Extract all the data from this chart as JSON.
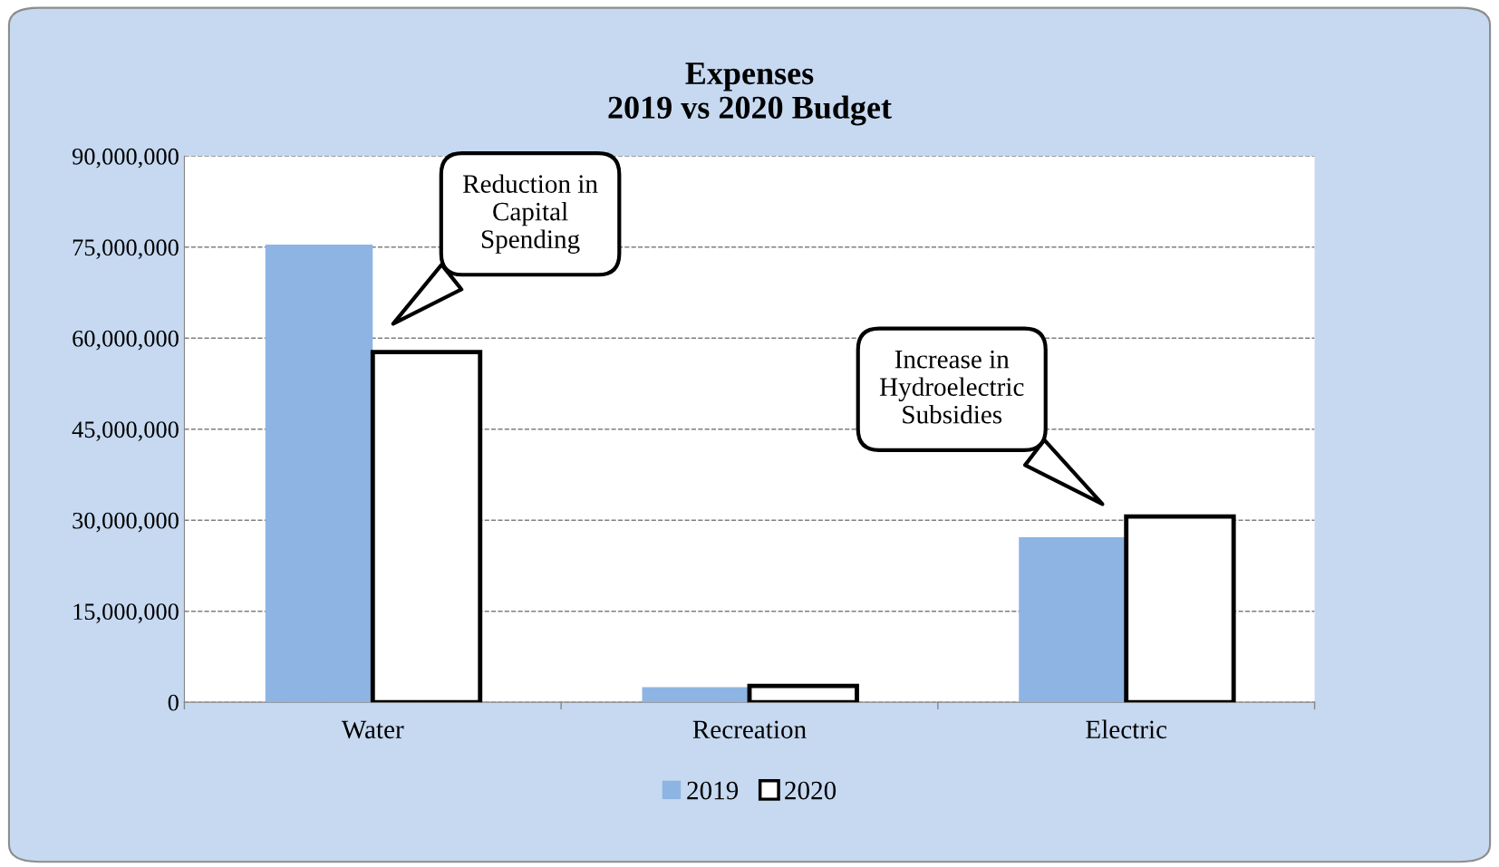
{
  "chart_data": {
    "type": "bar",
    "title": "Expenses\n2019 vs 2020 Budget",
    "categories": [
      "Water",
      "Recreation",
      "Electric"
    ],
    "series": [
      {
        "name": "2019",
        "color": "#8eb4e3",
        "values": [
          75400000,
          2500000,
          27200000
        ]
      },
      {
        "name": "2020",
        "color": "#ffffff",
        "values": [
          57700000,
          2700000,
          30600000
        ]
      }
    ],
    "ylim": [
      0,
      90000000
    ],
    "yticks": [
      {
        "value": 0,
        "label": "0"
      },
      {
        "value": 15000000,
        "label": "15,000,000"
      },
      {
        "value": 30000000,
        "label": "30,000,000"
      },
      {
        "value": 45000000,
        "label": "45,000,000"
      },
      {
        "value": 60000000,
        "label": "60,000,000"
      },
      {
        "value": 75000000,
        "label": "75,000,000"
      },
      {
        "value": 90000000,
        "label": "90,000,000"
      }
    ],
    "grid": "y",
    "line_style": "dashed",
    "legend": "bottom",
    "annotations": [
      "Reduction in\nCapital\nSpending",
      "Increase in\nHydroelectric\nSubsidies"
    ]
  }
}
